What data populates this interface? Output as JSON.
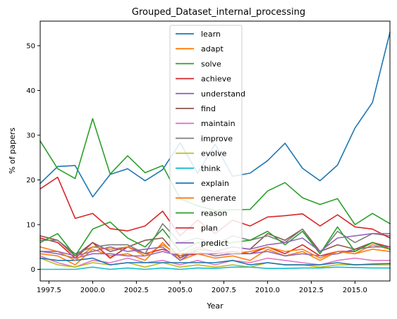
{
  "chart_data": {
    "type": "line",
    "title": "Grouped_Dataset_internal_processing",
    "xlabel": "Year",
    "ylabel": "% of papers",
    "xlim": [
      1997,
      2017
    ],
    "ylim": [
      -2.6,
      55.5
    ],
    "x_ticks": [
      "1997.5",
      "2000.0",
      "2002.5",
      "2005.0",
      "2007.5",
      "2010.0",
      "2012.5",
      "2015.0"
    ],
    "y_ticks": [
      "0",
      "10",
      "20",
      "30",
      "40",
      "50"
    ],
    "x": [
      1997,
      1998,
      1999,
      2000,
      2001,
      2002,
      2003,
      2004,
      2005,
      2006,
      2007,
      2008,
      2009,
      2010,
      2011,
      2012,
      2013,
      2014,
      2015,
      2016,
      2017
    ],
    "legend_position": "upper center",
    "series": [
      {
        "name": "learn",
        "color": "#1f77b4",
        "values": [
          19.2,
          23.0,
          23.2,
          16.2,
          21.2,
          22.5,
          19.8,
          22.3,
          28.3,
          21.5,
          28.0,
          20.8,
          21.5,
          24.3,
          28.2,
          22.6,
          19.8,
          23.3,
          31.6,
          37.3,
          53.0
        ]
      },
      {
        "name": "adapt",
        "color": "#ff7f0e",
        "values": [
          3.5,
          3.0,
          1.0,
          4.5,
          3.0,
          3.5,
          2.0,
          6.0,
          2.0,
          3.5,
          2.5,
          3.0,
          2.0,
          4.5,
          3.0,
          4.0,
          2.0,
          4.0,
          3.5,
          5.5,
          4.5
        ]
      },
      {
        "name": "solve",
        "color": "#2ca02c",
        "values": [
          28.7,
          22.5,
          20.3,
          33.7,
          21.3,
          25.4,
          21.6,
          23.2,
          15.8,
          14.2,
          13.2,
          13.3,
          13.4,
          17.5,
          19.4,
          16.0,
          14.5,
          15.8,
          10.0,
          12.5,
          10.2
        ]
      },
      {
        "name": "achieve",
        "color": "#d62728",
        "values": [
          7.0,
          6.0,
          2.5,
          6.0,
          2.5,
          5.0,
          3.5,
          4.5,
          3.0,
          3.5,
          3.5,
          4.0,
          3.5,
          5.0,
          3.5,
          5.5,
          3.0,
          4.0,
          4.0,
          6.0,
          5.0
        ]
      },
      {
        "name": "understand",
        "color": "#9467bd",
        "values": [
          4.0,
          3.5,
          2.5,
          3.5,
          3.5,
          3.0,
          3.0,
          4.0,
          3.0,
          4.0,
          3.0,
          3.5,
          3.5,
          4.0,
          3.0,
          3.5,
          3.0,
          3.5,
          4.5,
          5.0,
          5.0
        ]
      },
      {
        "name": "find",
        "color": "#8c564b",
        "values": [
          7.5,
          6.5,
          3.0,
          6.0,
          4.0,
          5.0,
          6.5,
          7.0,
          2.5,
          4.5,
          4.0,
          5.0,
          4.5,
          8.0,
          6.5,
          9.0,
          4.0,
          5.5,
          4.5,
          6.0,
          4.5
        ]
      },
      {
        "name": "maintain",
        "color": "#e377c2",
        "values": [
          3.0,
          1.5,
          0.5,
          2.0,
          1.5,
          2.5,
          1.5,
          2.0,
          1.0,
          2.0,
          1.0,
          2.0,
          1.5,
          2.5,
          2.0,
          1.5,
          1.0,
          2.0,
          2.5,
          2.0,
          2.0
        ]
      },
      {
        "name": "improve",
        "color": "#7f7f7f",
        "values": [
          6.5,
          6.5,
          3.5,
          5.0,
          5.5,
          5.5,
          3.5,
          10.2,
          6.0,
          7.0,
          5.5,
          7.5,
          6.5,
          7.5,
          6.0,
          9.0,
          3.5,
          8.5,
          6.0,
          8.0,
          7.5
        ]
      },
      {
        "name": "evolve",
        "color": "#bcbd22",
        "values": [
          2.5,
          1.0,
          0.5,
          1.5,
          1.0,
          1.5,
          0.5,
          1.5,
          0.5,
          1.0,
          0.5,
          1.0,
          0.5,
          1.5,
          1.0,
          1.0,
          0.5,
          1.0,
          1.0,
          1.0,
          1.0
        ]
      },
      {
        "name": "think",
        "color": "#17becf",
        "values": [
          0.0,
          0.0,
          0.0,
          0.5,
          0.0,
          0.3,
          0.0,
          0.3,
          0.0,
          0.3,
          0.2,
          0.5,
          0.5,
          0.2,
          0.2,
          0.3,
          0.3,
          0.5,
          0.4,
          0.3,
          0.3
        ]
      },
      {
        "name": "explain",
        "color": "#1f77b4",
        "values": [
          2.5,
          2.0,
          2.0,
          2.5,
          1.0,
          1.5,
          1.5,
          1.5,
          1.5,
          1.5,
          1.5,
          2.0,
          1.0,
          1.5,
          1.0,
          1.0,
          1.0,
          1.5,
          1.0,
          1.2,
          1.3
        ]
      },
      {
        "name": "generate",
        "color": "#ff7f0e",
        "values": [
          5.0,
          4.0,
          2.0,
          5.0,
          4.5,
          5.0,
          3.0,
          5.5,
          3.0,
          5.0,
          4.0,
          3.5,
          4.0,
          5.0,
          4.0,
          4.5,
          2.5,
          4.0,
          3.5,
          4.5,
          4.0
        ]
      },
      {
        "name": "reason",
        "color": "#2ca02c",
        "values": [
          6.0,
          8.0,
          3.0,
          9.0,
          10.6,
          7.0,
          5.0,
          9.0,
          4.0,
          6.0,
          5.5,
          6.0,
          6.5,
          8.5,
          5.5,
          8.5,
          3.5,
          9.5,
          4.0,
          6.0,
          4.5
        ]
      },
      {
        "name": "plan",
        "color": "#d62728",
        "values": [
          18.0,
          20.6,
          11.4,
          12.5,
          9.1,
          8.6,
          9.7,
          13.0,
          7.5,
          11.0,
          8.0,
          11.0,
          9.7,
          11.7,
          12.0,
          12.4,
          9.7,
          12.2,
          9.5,
          9.0,
          7.0
        ]
      },
      {
        "name": "predict",
        "color": "#9467bd",
        "values": [
          4.0,
          4.0,
          3.0,
          4.0,
          5.0,
          4.0,
          4.5,
          5.0,
          2.0,
          4.5,
          4.0,
          5.0,
          4.5,
          5.5,
          6.0,
          7.0,
          4.0,
          7.0,
          7.5,
          8.0,
          8.0
        ]
      }
    ]
  }
}
